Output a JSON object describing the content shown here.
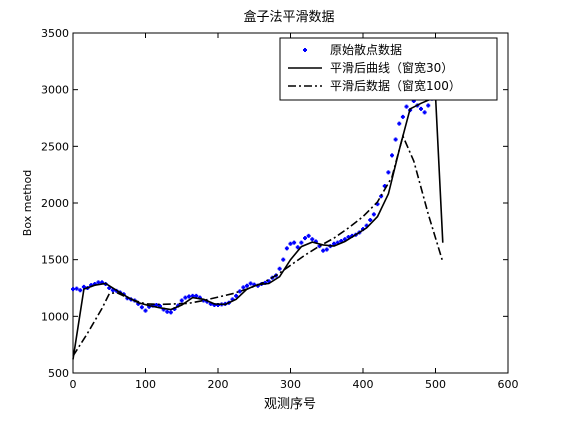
{
  "chart_data": {
    "type": "line",
    "title": "盒子法平滑数据",
    "xlabel": "观测序号",
    "ylabel": "Box method",
    "xlim": [
      0,
      600
    ],
    "ylim": [
      500,
      3500
    ],
    "xticks": [
      0,
      100,
      200,
      300,
      400,
      500,
      600
    ],
    "yticks": [
      500,
      1000,
      1500,
      2000,
      2500,
      3000,
      3500
    ],
    "grid": false,
    "legend_position": "top-right",
    "series": [
      {
        "name": "原始散点数据",
        "style": "blue-dot-markers",
        "color": "#0000ff",
        "x": [
          0,
          5,
          10,
          15,
          20,
          25,
          30,
          35,
          40,
          45,
          50,
          55,
          60,
          65,
          70,
          75,
          80,
          85,
          90,
          95,
          100,
          105,
          110,
          115,
          120,
          125,
          130,
          135,
          140,
          145,
          150,
          155,
          160,
          165,
          170,
          175,
          180,
          185,
          190,
          195,
          200,
          205,
          210,
          215,
          220,
          225,
          230,
          235,
          240,
          245,
          250,
          255,
          260,
          265,
          270,
          275,
          280,
          285,
          290,
          295,
          300,
          305,
          310,
          315,
          320,
          325,
          330,
          335,
          340,
          345,
          350,
          355,
          360,
          365,
          370,
          375,
          380,
          385,
          390,
          395,
          400,
          405,
          410,
          415,
          420,
          425,
          430,
          435,
          440,
          445,
          450,
          455,
          460,
          465,
          470,
          475,
          480,
          485,
          490,
          495
        ],
        "y": [
          1240,
          1245,
          1230,
          1260,
          1250,
          1275,
          1285,
          1300,
          1300,
          1285,
          1250,
          1230,
          1225,
          1210,
          1195,
          1160,
          1150,
          1140,
          1110,
          1080,
          1050,
          1085,
          1095,
          1100,
          1090,
          1060,
          1040,
          1035,
          1065,
          1095,
          1140,
          1165,
          1175,
          1180,
          1180,
          1165,
          1140,
          1130,
          1110,
          1100,
          1100,
          1105,
          1110,
          1120,
          1150,
          1180,
          1220,
          1255,
          1270,
          1290,
          1280,
          1270,
          1285,
          1295,
          1310,
          1340,
          1360,
          1420,
          1500,
          1600,
          1640,
          1650,
          1610,
          1650,
          1690,
          1710,
          1680,
          1660,
          1620,
          1580,
          1590,
          1620,
          1640,
          1650,
          1665,
          1680,
          1700,
          1710,
          1720,
          1740,
          1770,
          1800,
          1850,
          1900,
          1990,
          2060,
          2150,
          2270,
          2420,
          2560,
          2700,
          2760,
          2850,
          2820,
          2900,
          2860,
          2830,
          2800,
          2860,
          2920
        ]
      },
      {
        "name": "平滑后曲线（窗宽30）",
        "style": "solid",
        "color": "#000000",
        "x": [
          0,
          15,
          30,
          45,
          60,
          75,
          90,
          105,
          120,
          135,
          150,
          165,
          180,
          195,
          210,
          225,
          240,
          255,
          270,
          285,
          300,
          315,
          330,
          345,
          360,
          375,
          390,
          405,
          420,
          435,
          450,
          465,
          480,
          495,
          500,
          510
        ],
        "y": [
          620,
          1240,
          1275,
          1290,
          1230,
          1170,
          1120,
          1095,
          1075,
          1060,
          1100,
          1165,
          1150,
          1110,
          1105,
          1150,
          1240,
          1280,
          1290,
          1350,
          1500,
          1615,
          1655,
          1630,
          1620,
          1660,
          1720,
          1780,
          1880,
          2080,
          2470,
          2830,
          2880,
          2920,
          2950,
          1650
        ]
      },
      {
        "name": "平滑后数据（窗宽100）",
        "style": "dash-dot",
        "color": "#000000",
        "x": [
          0,
          20,
          40,
          50,
          60,
          80,
          100,
          120,
          140,
          160,
          180,
          200,
          220,
          240,
          260,
          280,
          300,
          320,
          340,
          360,
          380,
          400,
          420,
          440,
          455,
          470,
          490,
          510
        ],
        "y": [
          650,
          850,
          1070,
          1200,
          1210,
          1150,
          1110,
          1105,
          1110,
          1115,
          1140,
          1170,
          1200,
          1240,
          1290,
          1360,
          1450,
          1540,
          1620,
          1690,
          1780,
          1880,
          2010,
          2230,
          2590,
          2370,
          1900,
          1480
        ]
      }
    ]
  }
}
